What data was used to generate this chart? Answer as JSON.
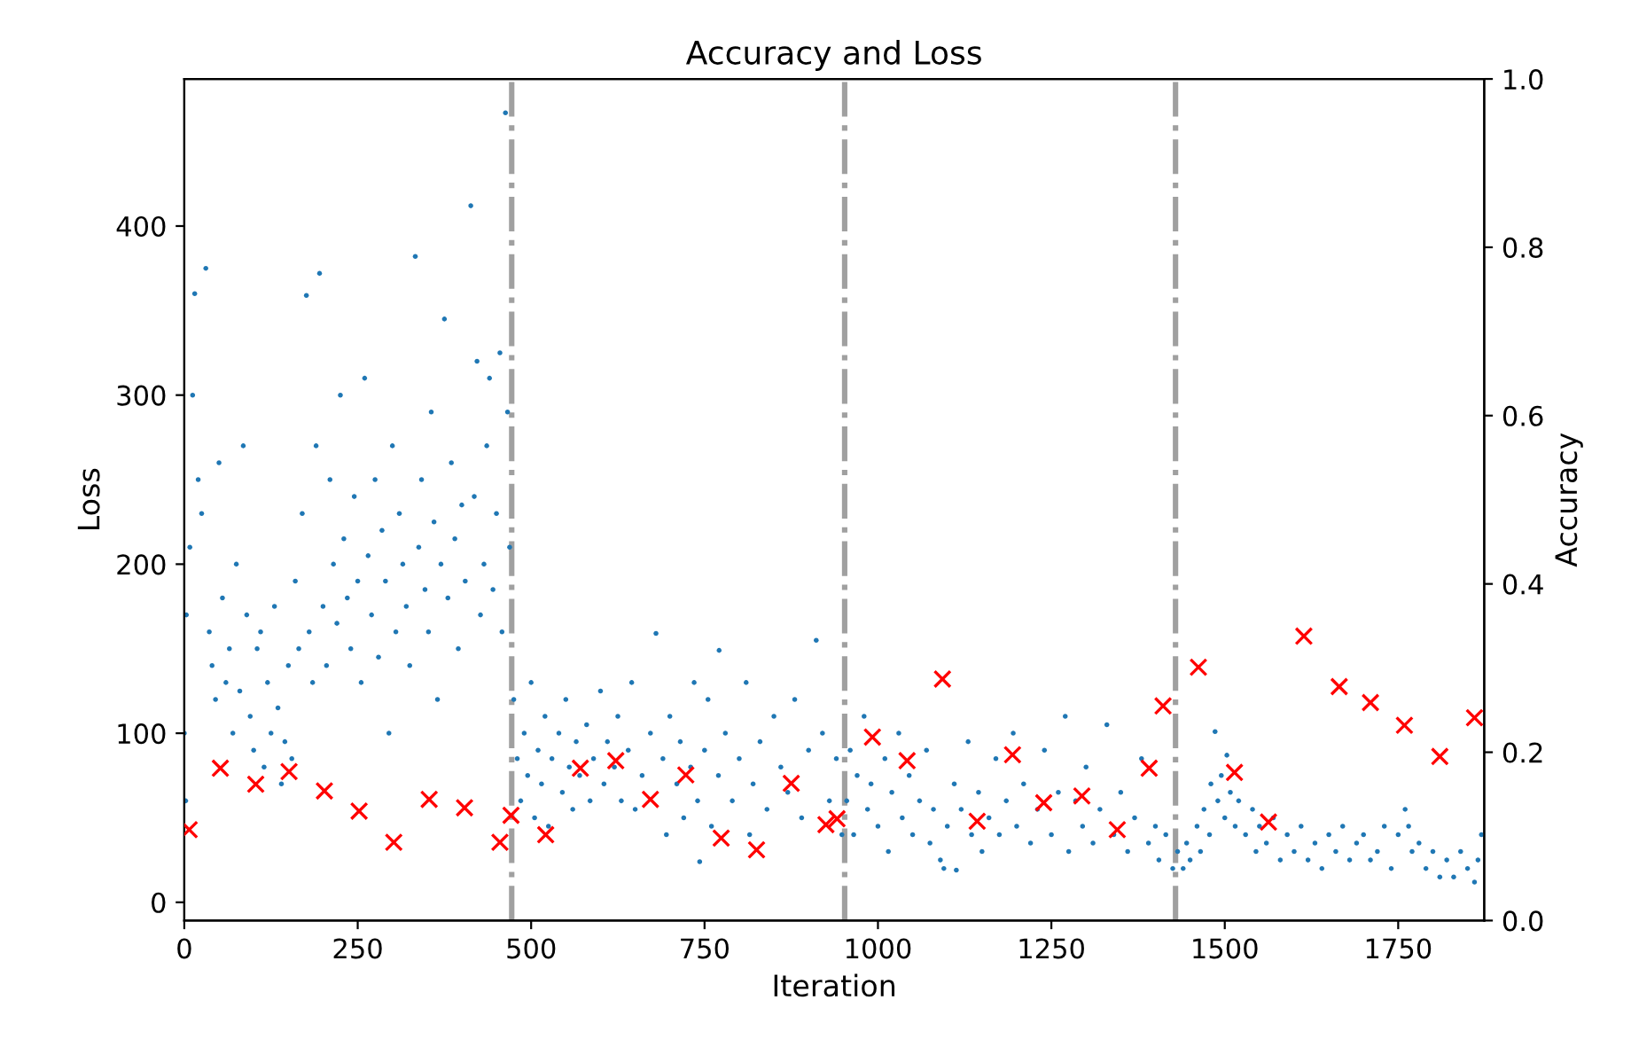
{
  "chart_data": {
    "type": "scatter",
    "title": "Accuracy and Loss",
    "xlabel": "Iteration",
    "ylabel": "Loss",
    "y2label": "Accuracy",
    "xlim": [
      0,
      1874
    ],
    "xticks": [
      0,
      250,
      500,
      750,
      1000,
      1250,
      1500,
      1750
    ],
    "ylim": [
      -10.8,
      487
    ],
    "yticks": [
      0,
      100,
      200,
      300,
      400
    ],
    "y2lim": [
      0,
      1
    ],
    "y2ticks": [
      {
        "value": 0,
        "label": "0.0"
      },
      {
        "value": 0.2,
        "label": "0.2"
      },
      {
        "value": 0.4,
        "label": "0.4"
      },
      {
        "value": 0.6,
        "label": "0.6"
      },
      {
        "value": 0.8,
        "label": "0.8"
      },
      {
        "value": 1,
        "label": "1.0"
      }
    ],
    "grid": false,
    "legend": false,
    "ref_lines": [
      {
        "axis": "x",
        "value": 472,
        "color": "#a0a0a0",
        "line_style": "dashdot"
      },
      {
        "axis": "x",
        "value": 952,
        "color": "#a0a0a0",
        "line_style": "dashdot"
      },
      {
        "axis": "x",
        "value": 1429,
        "color": "#a0a0a0",
        "line_style": "dashdot"
      }
    ],
    "series": [
      {
        "color": "#1f77b4",
        "marker": "circle",
        "x": [
          0,
          2,
          3,
          8,
          12,
          15,
          20,
          25,
          31,
          36,
          40,
          45,
          50,
          55,
          60,
          65,
          70,
          75,
          80,
          85,
          90,
          95,
          100,
          105,
          110,
          115,
          120,
          125,
          130,
          135,
          140,
          145,
          150,
          155,
          160,
          165,
          170,
          176,
          180,
          185,
          190,
          195,
          200,
          205,
          210,
          215,
          220,
          225,
          230,
          235,
          240,
          245,
          250,
          255,
          260,
          265,
          270,
          275,
          280,
          285,
          290,
          295,
          300,
          305,
          310,
          315,
          320,
          325,
          333,
          338,
          342,
          347,
          352,
          356,
          360,
          365,
          370,
          375,
          380,
          385,
          390,
          395,
          400,
          405,
          413,
          418,
          422,
          427,
          432,
          436,
          440,
          445,
          450,
          455,
          458,
          463,
          466,
          469,
          475,
          480,
          485,
          490,
          495,
          500,
          505,
          510,
          515,
          520,
          525,
          530,
          540,
          545,
          550,
          555,
          560,
          565,
          570,
          580,
          585,
          590,
          600,
          605,
          610,
          620,
          625,
          630,
          640,
          645,
          650,
          660,
          672,
          680,
          690,
          695,
          700,
          710,
          715,
          720,
          730,
          735,
          740,
          743,
          750,
          755,
          760,
          770,
          771,
          780,
          790,
          800,
          810,
          815,
          820,
          830,
          840,
          850,
          860,
          870,
          880,
          890,
          900,
          911,
          920,
          930,
          940,
          948,
          955,
          960,
          965,
          970,
          980,
          985,
          990,
          1000,
          1010,
          1015,
          1020,
          1030,
          1035,
          1045,
          1050,
          1060,
          1070,
          1075,
          1080,
          1090,
          1095,
          1100,
          1110,
          1113,
          1120,
          1130,
          1135,
          1145,
          1150,
          1160,
          1170,
          1175,
          1185,
          1195,
          1200,
          1210,
          1220,
          1230,
          1240,
          1250,
          1260,
          1270,
          1275,
          1285,
          1295,
          1300,
          1310,
          1320,
          1330,
          1340,
          1350,
          1360,
          1370,
          1380,
          1390,
          1400,
          1405,
          1415,
          1425,
          1432,
          1440,
          1445,
          1450,
          1460,
          1465,
          1470,
          1478,
          1480,
          1486,
          1490,
          1495,
          1500,
          1503,
          1508,
          1515,
          1520,
          1530,
          1540,
          1545,
          1550,
          1560,
          1570,
          1580,
          1590,
          1600,
          1610,
          1620,
          1630,
          1640,
          1650,
          1660,
          1670,
          1680,
          1690,
          1700,
          1710,
          1720,
          1730,
          1740,
          1750,
          1760,
          1765,
          1770,
          1780,
          1790,
          1800,
          1810,
          1820,
          1830,
          1840,
          1850,
          1860,
          1865,
          1870
        ],
        "values": [
          100,
          60,
          170,
          210,
          300,
          360,
          250,
          230,
          375,
          160,
          140,
          120,
          260,
          180,
          130,
          150,
          100,
          200,
          125,
          270,
          170,
          110,
          90,
          150,
          160,
          80,
          130,
          100,
          175,
          115,
          70,
          95,
          140,
          85,
          190,
          150,
          230,
          359,
          160,
          130,
          270,
          372,
          175,
          140,
          250,
          200,
          165,
          300,
          215,
          180,
          150,
          240,
          190,
          130,
          310,
          205,
          170,
          250,
          145,
          220,
          190,
          100,
          270,
          160,
          230,
          200,
          175,
          140,
          382,
          210,
          250,
          185,
          160,
          290,
          225,
          120,
          200,
          345,
          180,
          260,
          215,
          150,
          235,
          190,
          412,
          240,
          320,
          170,
          200,
          270,
          310,
          185,
          230,
          325,
          160,
          467,
          290,
          210,
          120,
          85,
          60,
          100,
          75,
          130,
          50,
          90,
          70,
          110,
          45,
          85,
          100,
          65,
          120,
          80,
          55,
          95,
          75,
          105,
          60,
          85,
          125,
          70,
          95,
          80,
          110,
          60,
          90,
          130,
          55,
          75,
          100,
          159,
          85,
          40,
          110,
          70,
          95,
          50,
          80,
          130,
          60,
          24,
          90,
          120,
          45,
          75,
          149,
          100,
          60,
          85,
          130,
          40,
          70,
          95,
          55,
          110,
          80,
          65,
          120,
          50,
          90,
          155,
          100,
          60,
          85,
          40,
          60,
          90,
          40,
          75,
          110,
          55,
          70,
          45,
          85,
          30,
          65,
          100,
          50,
          75,
          40,
          60,
          90,
          35,
          55,
          25,
          20,
          45,
          70,
          19,
          55,
          95,
          40,
          65,
          30,
          50,
          85,
          40,
          60,
          100,
          45,
          70,
          35,
          55,
          90,
          40,
          65,
          110,
          30,
          60,
          45,
          80,
          35,
          55,
          105,
          40,
          65,
          30,
          50,
          85,
          35,
          45,
          25,
          40,
          20,
          30,
          20,
          35,
          25,
          45,
          30,
          55,
          40,
          70,
          101,
          60,
          75,
          50,
          87,
          65,
          45,
          60,
          40,
          55,
          30,
          45,
          35,
          50,
          25,
          40,
          30,
          45,
          25,
          35,
          20,
          40,
          30,
          45,
          25,
          35,
          40,
          25,
          30,
          45,
          20,
          40,
          55,
          45,
          30,
          35,
          20,
          30,
          15,
          25,
          15,
          30,
          20,
          12,
          25,
          40
        ]
      },
      {
        "axis": "y2",
        "color": "#ff0000",
        "marker": "cross",
        "x": [
          7,
          52,
          103,
          151,
          202,
          252,
          302,
          353,
          404,
          455,
          471,
          521,
          571,
          622,
          672,
          723,
          774,
          825,
          875,
          925,
          941,
          992,
          1042,
          1093,
          1143,
          1194,
          1239,
          1294,
          1345,
          1391,
          1411,
          1462,
          1514,
          1563,
          1614,
          1665,
          1710,
          1759,
          1810,
          1860
        ],
        "values": [
          0.108,
          0.181,
          0.162,
          0.177,
          0.154,
          0.13,
          0.093,
          0.144,
          0.134,
          0.093,
          0.125,
          0.102,
          0.181,
          0.19,
          0.144,
          0.173,
          0.098,
          0.084,
          0.163,
          0.114,
          0.121,
          0.218,
          0.19,
          0.287,
          0.118,
          0.197,
          0.14,
          0.148,
          0.108,
          0.181,
          0.255,
          0.301,
          0.176,
          0.117,
          0.338,
          0.278,
          0.259,
          0.232,
          0.195,
          0.241
        ]
      }
    ]
  }
}
